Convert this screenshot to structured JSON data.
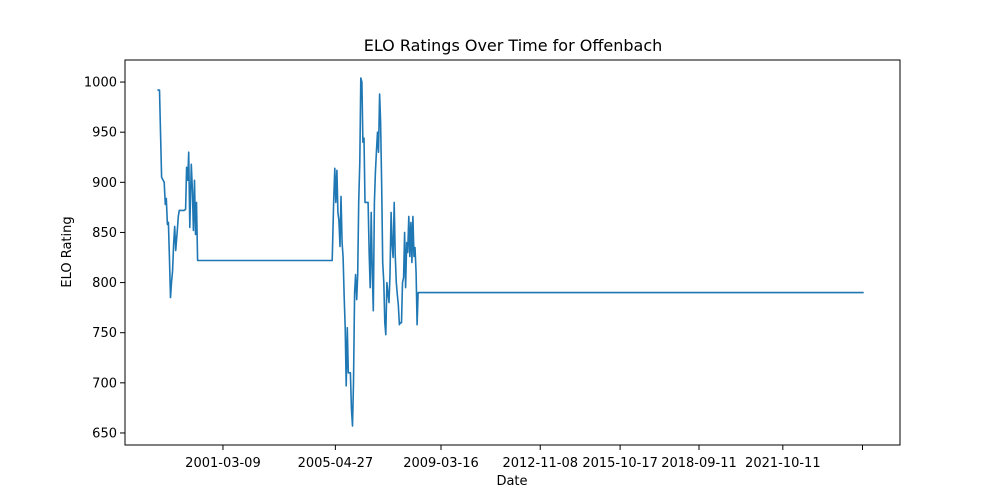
{
  "chart_data": {
    "type": "line",
    "title": "ELO Ratings Over Time for Offenbach",
    "xlabel": "Date",
    "ylabel": "ELO Rating",
    "x_tick_labels": [
      "2001-03-09",
      "2005-04-27",
      "2009-03-16",
      "2012-11-08",
      "2015-10-17",
      "2018-09-11",
      "2021-10-11"
    ],
    "y_tick_labels": [
      "650",
      "700",
      "750",
      "800",
      "850",
      "900",
      "950",
      "1000"
    ],
    "ylim": [
      638,
      1022
    ],
    "xlim": [
      "1997-08-01",
      "2026-02-01"
    ],
    "grid": false,
    "legend": "none",
    "colors": {
      "line": "#1f77b4"
    },
    "series": [
      {
        "points": [
          [
            "1998-10-10",
            992
          ],
          [
            "1998-11-07",
            992
          ],
          [
            "1998-12-05",
            905
          ],
          [
            "1999-01-10",
            900
          ],
          [
            "1999-01-24",
            878
          ],
          [
            "1999-02-07",
            884
          ],
          [
            "1999-02-21",
            858
          ],
          [
            "1999-03-07",
            860
          ],
          [
            "1999-03-21",
            826
          ],
          [
            "1999-04-04",
            785
          ],
          [
            "1999-04-18",
            800
          ],
          [
            "1999-05-02",
            812
          ],
          [
            "1999-05-16",
            838
          ],
          [
            "1999-05-30",
            856
          ],
          [
            "1999-06-13",
            832
          ],
          [
            "1999-07-04",
            852
          ],
          [
            "1999-07-18",
            866
          ],
          [
            "1999-08-01",
            872
          ],
          [
            "1999-08-22",
            872
          ],
          [
            "1999-09-12",
            872
          ],
          [
            "1999-10-03",
            872
          ],
          [
            "1999-10-24",
            873
          ],
          [
            "1999-11-07",
            915
          ],
          [
            "1999-11-21",
            902
          ],
          [
            "1999-12-05",
            930
          ],
          [
            "1999-12-19",
            855
          ],
          [
            "2000-01-09",
            918
          ],
          [
            "2000-01-23",
            892
          ],
          [
            "2000-02-06",
            852
          ],
          [
            "2000-02-20",
            902
          ],
          [
            "2000-03-05",
            848
          ],
          [
            "2000-03-19",
            880
          ],
          [
            "2000-04-02",
            822
          ],
          [
            "2005-03-15",
            822
          ],
          [
            "2005-04-05",
            882
          ],
          [
            "2005-04-19",
            914
          ],
          [
            "2005-05-03",
            880
          ],
          [
            "2005-05-17",
            912
          ],
          [
            "2005-05-31",
            870
          ],
          [
            "2005-06-14",
            862
          ],
          [
            "2005-06-28",
            836
          ],
          [
            "2005-07-12",
            886
          ],
          [
            "2005-07-26",
            840
          ],
          [
            "2005-08-09",
            825
          ],
          [
            "2005-08-23",
            785
          ],
          [
            "2005-09-06",
            755
          ],
          [
            "2005-09-20",
            697
          ],
          [
            "2005-10-04",
            755
          ],
          [
            "2005-10-18",
            710
          ],
          [
            "2005-11-01",
            710
          ],
          [
            "2005-11-15",
            710
          ],
          [
            "2005-11-29",
            675
          ],
          [
            "2005-12-13",
            657
          ],
          [
            "2005-12-27",
            700
          ],
          [
            "2006-01-10",
            790
          ],
          [
            "2006-01-24",
            808
          ],
          [
            "2006-02-07",
            783
          ],
          [
            "2006-02-21",
            808
          ],
          [
            "2006-03-07",
            880
          ],
          [
            "2006-03-21",
            920
          ],
          [
            "2006-04-04",
            1004
          ],
          [
            "2006-04-18",
            1000
          ],
          [
            "2006-05-02",
            940
          ],
          [
            "2006-05-16",
            944
          ],
          [
            "2006-05-30",
            880
          ],
          [
            "2006-06-13",
            880
          ],
          [
            "2006-06-27",
            880
          ],
          [
            "2006-07-11",
            880
          ],
          [
            "2006-07-25",
            828
          ],
          [
            "2006-08-08",
            795
          ],
          [
            "2006-08-22",
            870
          ],
          [
            "2006-09-05",
            810
          ],
          [
            "2006-09-19",
            772
          ],
          [
            "2006-10-03",
            880
          ],
          [
            "2006-10-17",
            910
          ],
          [
            "2006-10-31",
            932
          ],
          [
            "2006-11-14",
            950
          ],
          [
            "2006-11-28",
            930
          ],
          [
            "2006-12-12",
            988
          ],
          [
            "2006-12-26",
            960
          ],
          [
            "2007-01-09",
            895
          ],
          [
            "2007-01-23",
            820
          ],
          [
            "2007-02-06",
            800
          ],
          [
            "2007-02-20",
            760
          ],
          [
            "2007-03-06",
            748
          ],
          [
            "2007-03-20",
            800
          ],
          [
            "2007-04-03",
            790
          ],
          [
            "2007-04-17",
            780
          ],
          [
            "2007-05-01",
            808
          ],
          [
            "2007-05-15",
            870
          ],
          [
            "2007-05-29",
            838
          ],
          [
            "2007-06-12",
            825
          ],
          [
            "2007-06-26",
            880
          ],
          [
            "2007-07-10",
            828
          ],
          [
            "2007-07-24",
            800
          ],
          [
            "2007-08-07",
            788
          ],
          [
            "2007-08-21",
            778
          ],
          [
            "2007-09-04",
            758
          ],
          [
            "2007-09-18",
            760
          ],
          [
            "2007-10-02",
            760
          ],
          [
            "2007-10-16",
            800
          ],
          [
            "2007-10-30",
            805
          ],
          [
            "2007-11-13",
            850
          ],
          [
            "2007-11-27",
            795
          ],
          [
            "2007-12-11",
            840
          ],
          [
            "2007-12-25",
            830
          ],
          [
            "2008-01-08",
            866
          ],
          [
            "2008-01-22",
            826
          ],
          [
            "2008-02-05",
            860
          ],
          [
            "2008-02-19",
            820
          ],
          [
            "2008-03-04",
            866
          ],
          [
            "2008-03-18",
            826
          ],
          [
            "2008-04-01",
            835
          ],
          [
            "2008-04-15",
            810
          ],
          [
            "2008-04-29",
            758
          ],
          [
            "2008-05-13",
            790
          ],
          [
            "2024-10-01",
            790
          ]
        ]
      }
    ]
  }
}
